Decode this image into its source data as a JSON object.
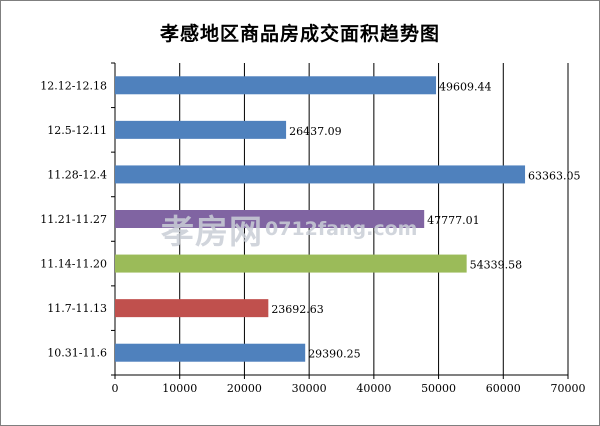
{
  "chart_data": {
    "type": "bar",
    "orientation": "horizontal",
    "title": "孝感地区商品房成交面积趋势图",
    "xlabel": "",
    "ylabel": "",
    "xlim": [
      0,
      70000
    ],
    "x_ticks": [
      "0",
      "10000",
      "20000",
      "30000",
      "40000",
      "50000",
      "60000",
      "70000"
    ],
    "grid": "vertical",
    "legend": "none",
    "categories": [
      "12.12-12.18",
      "12.5-12.11",
      "11.28-12.4",
      "11.21-11.27",
      "11.14-11.20",
      "11.7-11.13",
      "10.31-11.6"
    ],
    "values": [
      49609.44,
      26437.09,
      63363.05,
      47777.01,
      54339.58,
      23692.63,
      29390.25
    ],
    "value_labels": [
      "49609.44",
      "26437.09",
      "63363.05",
      "47777.01",
      "54339.58",
      "23692.63",
      "29390.25"
    ],
    "bar_colors": [
      "#4f81bd",
      "#4f81bd",
      "#4f81bd",
      "#8064a2",
      "#9bbb59",
      "#c0504d",
      "#4f81bd"
    ]
  },
  "watermark": {
    "brand": "孝房网",
    "domain": "0712fang.com"
  }
}
